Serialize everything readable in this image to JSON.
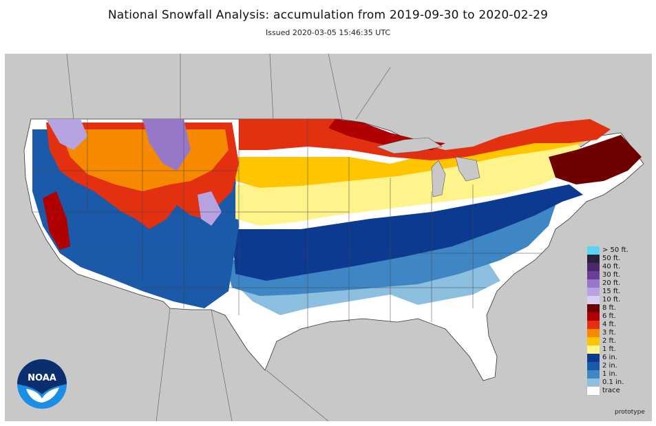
{
  "header": {
    "title": "National Snowfall Analysis: accumulation from 2019-09-30 to 2020-02-29",
    "issued": "Issued 2020-03-05 15:46:35 UTC"
  },
  "footer": {
    "note": "prototype"
  },
  "logo": {
    "text": "NOAA"
  },
  "colors": {
    "land_background": "#c8c8c8",
    "snow_free": "#ffffff"
  },
  "legend": [
    {
      "label": "> 50 ft.",
      "color": "#5ad4f2"
    },
    {
      "label": "50 ft.",
      "color": "#2b1f3c"
    },
    {
      "label": "40 ft.",
      "color": "#4a2a6a"
    },
    {
      "label": "30 ft.",
      "color": "#6b3f98"
    },
    {
      "label": "20 ft.",
      "color": "#9677c8"
    },
    {
      "label": "15 ft.",
      "color": "#b6a3df"
    },
    {
      "label": "10 ft.",
      "color": "#d6d0f2"
    },
    {
      "label": "8 ft.",
      "color": "#6e0000"
    },
    {
      "label": "6 ft.",
      "color": "#b00000"
    },
    {
      "label": "4 ft.",
      "color": "#e23010"
    },
    {
      "label": "3 ft.",
      "color": "#f58a00"
    },
    {
      "label": "2 ft.",
      "color": "#ffc600"
    },
    {
      "label": "1 ft.",
      "color": "#fff38c"
    },
    {
      "label": "6 in.",
      "color": "#0d3a91"
    },
    {
      "label": "2 in.",
      "color": "#1a5aa8"
    },
    {
      "label": "1 in.",
      "color": "#3f86c4"
    },
    {
      "label": "0.1 in.",
      "color": "#8cbfe0"
    },
    {
      "label": "trace",
      "color": "#ffffff"
    }
  ]
}
